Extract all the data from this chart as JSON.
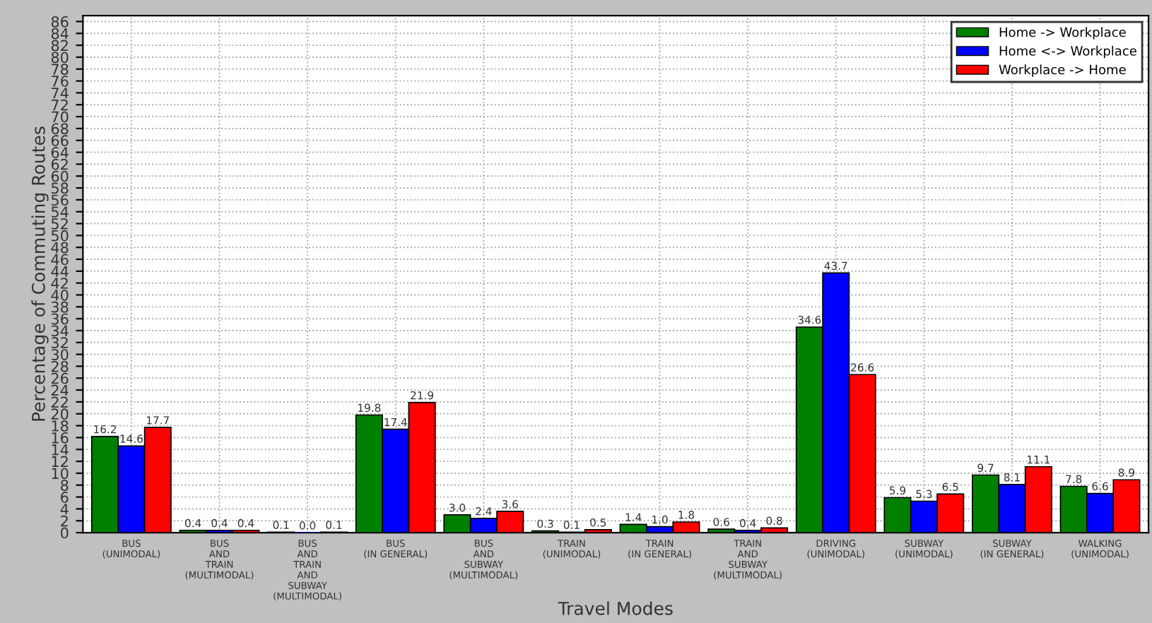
{
  "chart_data": {
    "type": "bar",
    "xlabel": "Travel Modes",
    "ylabel": "Percentage of Commuting Routes",
    "categories": [
      "BUS\n(UNIMODAL)",
      "BUS\nAND\nTRAIN\n(MULTIMODAL)",
      "BUS\nAND\nTRAIN\nAND\nSUBWAY\n(MULTIMODAL)",
      "BUS\n(IN GENERAL)",
      "BUS\nAND\nSUBWAY\n(MULTIMODAL)",
      "TRAIN\n(UNIMODAL)",
      "TRAIN\n(IN GENERAL)",
      "TRAIN\nAND\nSUBWAY\n(MULTIMODAL)",
      "DRIVING\n(UNIMODAL)",
      "SUBWAY\n(UNIMODAL)",
      "SUBWAY\n(IN GENERAL)",
      "WALKING\n(UNIMODAL)"
    ],
    "series": [
      {
        "name": "Home -> Workplace",
        "color": "#008000",
        "values": [
          16.2,
          0.4,
          0.1,
          19.8,
          3.0,
          0.3,
          1.4,
          0.6,
          34.6,
          5.9,
          9.7,
          7.8
        ],
        "value_labels": [
          "16.2",
          "0.4",
          "0.1",
          "19.8",
          "3.0",
          "0.3",
          "1.4",
          "0.6",
          "34.6",
          "5.9",
          "9.7",
          "7.8"
        ]
      },
      {
        "name": "Home <-> Workplace",
        "color": "#0000ff",
        "values": [
          14.6,
          0.4,
          0.0,
          17.4,
          2.4,
          0.1,
          1.0,
          0.4,
          43.7,
          5.3,
          8.1,
          6.6
        ],
        "value_labels": [
          "14.6",
          "0.4",
          "0.0",
          "17.4",
          "2.4",
          "0.1",
          "1.0",
          "0.4",
          "43.7",
          "5.3",
          "8.1",
          "6.6"
        ]
      },
      {
        "name": "Workplace -> Home",
        "color": "#ff0000",
        "values": [
          17.7,
          0.4,
          0.1,
          21.9,
          3.6,
          0.5,
          1.8,
          0.8,
          26.6,
          6.5,
          11.1,
          8.9
        ],
        "value_labels": [
          "17.7",
          "0.4",
          "0.1",
          "21.9",
          "3.6",
          "0.5",
          "1.8",
          "0.8",
          "26.6",
          "6.5",
          "11.1",
          "8.9"
        ]
      }
    ],
    "ylim": [
      0,
      87
    ],
    "yticks": [
      0,
      2,
      4,
      6,
      8,
      10,
      12,
      14,
      16,
      18,
      20,
      22,
      24,
      26,
      28,
      30,
      32,
      34,
      36,
      38,
      40,
      42,
      44,
      46,
      48,
      50,
      52,
      54,
      56,
      58,
      60,
      62,
      64,
      66,
      68,
      70,
      72,
      74,
      76,
      78,
      80,
      82,
      84,
      86
    ],
    "grid": true,
    "legend": "top right"
  }
}
